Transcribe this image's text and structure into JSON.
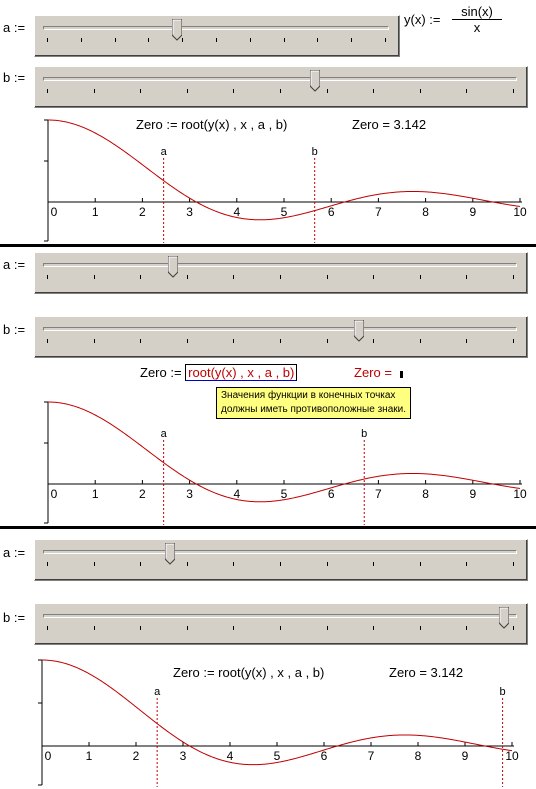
{
  "definition": {
    "lhs": "y(x) :=",
    "numerator": "sin(x)",
    "denominator": "x"
  },
  "panels": [
    {
      "slider_a": {
        "label": "a :=",
        "value_fraction": 0.385,
        "tick_count": 11
      },
      "slider_b": {
        "label": "b :=",
        "value_fraction": 0.575,
        "tick_count": 11
      },
      "formula": {
        "prefix": "Zero :=",
        "expr": "root(y(x) , x , a , b)",
        "result_label": "Zero = 3.142",
        "error": false
      },
      "markers": {
        "a_label": "a",
        "b_label": "b"
      }
    },
    {
      "slider_a": {
        "label": "a :=",
        "value_fraction": 0.27,
        "tick_count": 11
      },
      "slider_b": {
        "label": "b :=",
        "value_fraction": 0.67,
        "tick_count": 11
      },
      "formula": {
        "prefix": "Zero :=",
        "expr": "root(y(x) , x , a , b)",
        "result_label": "Zero =",
        "error": true
      },
      "tooltip": {
        "line1": "Значения функции в конечных точках",
        "line2": "должны иметь противоположные знаки."
      },
      "markers": {
        "a_label": "a",
        "b_label": "b"
      }
    },
    {
      "slider_a": {
        "label": "a :=",
        "value_fraction": 0.265,
        "tick_count": 11
      },
      "slider_b": {
        "label": "b :=",
        "value_fraction": 0.98,
        "tick_count": 11
      },
      "formula": {
        "prefix": "Zero :=",
        "expr": "root(y(x) , x , a , b)",
        "result_label": "Zero = 3.142",
        "error": false
      },
      "markers": {
        "a_label": "a",
        "b_label": "b"
      }
    }
  ],
  "colors": {
    "curve": "#c00000",
    "marker": "#c00000",
    "slider_face": "#d4d0c8",
    "tooltip_bg": "#ffff80"
  },
  "chart_data": [
    {
      "type": "line",
      "function": "sin(x)/x",
      "x_ticks": [
        "0",
        "1",
        "2",
        "3",
        "4",
        "5",
        "6",
        "7",
        "8",
        "9",
        "10"
      ],
      "xlim": [
        0,
        10
      ],
      "ylim": [
        -0.25,
        1
      ],
      "a": 2.45,
      "b": 5.65
    },
    {
      "type": "line",
      "function": "sin(x)/x",
      "x_ticks": [
        "0",
        "1",
        "2",
        "3",
        "4",
        "5",
        "6",
        "7",
        "8",
        "9",
        "10"
      ],
      "xlim": [
        0,
        10
      ],
      "ylim": [
        -0.25,
        1
      ],
      "a": 2.45,
      "b": 6.7
    },
    {
      "type": "line",
      "function": "sin(x)/x",
      "x_ticks": [
        "0",
        "1",
        "2",
        "3",
        "4",
        "5",
        "6",
        "7",
        "8",
        "9",
        "10"
      ],
      "xlim": [
        0,
        10
      ],
      "ylim": [
        -0.25,
        1
      ],
      "a": 2.45,
      "b": 9.8
    }
  ]
}
